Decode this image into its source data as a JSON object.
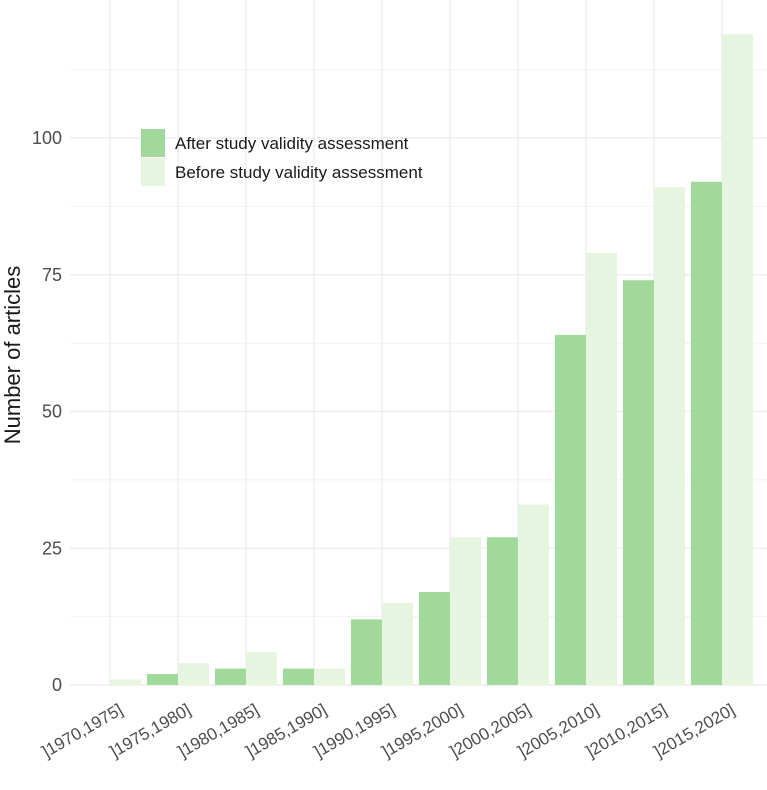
{
  "chart_data": {
    "type": "bar",
    "categories": [
      "]1970,1975]",
      "]1975,1980]",
      "]1980,1985]",
      "]1985,1990]",
      "]1990,1995]",
      "]1995,2000]",
      "]2000,2005]",
      "]2005,2010]",
      "]2010,2015]",
      "]2015,2020]"
    ],
    "series": [
      {
        "name": "After study validity assessment",
        "color": "#a1d99b",
        "values": [
          0,
          2,
          3,
          3,
          12,
          17,
          27,
          64,
          74,
          92
        ]
      },
      {
        "name": "Before study validity assessment",
        "color": "#e5f5e0",
        "values": [
          1,
          4,
          6,
          3,
          15,
          27,
          33,
          79,
          91,
          119
        ]
      }
    ],
    "title": "",
    "xlabel": "",
    "ylabel": "Number of articles",
    "ylim": [
      0,
      120
    ],
    "yticks": [
      0,
      25,
      50,
      75,
      100
    ],
    "grid": true,
    "legend_position": "top-left"
  }
}
